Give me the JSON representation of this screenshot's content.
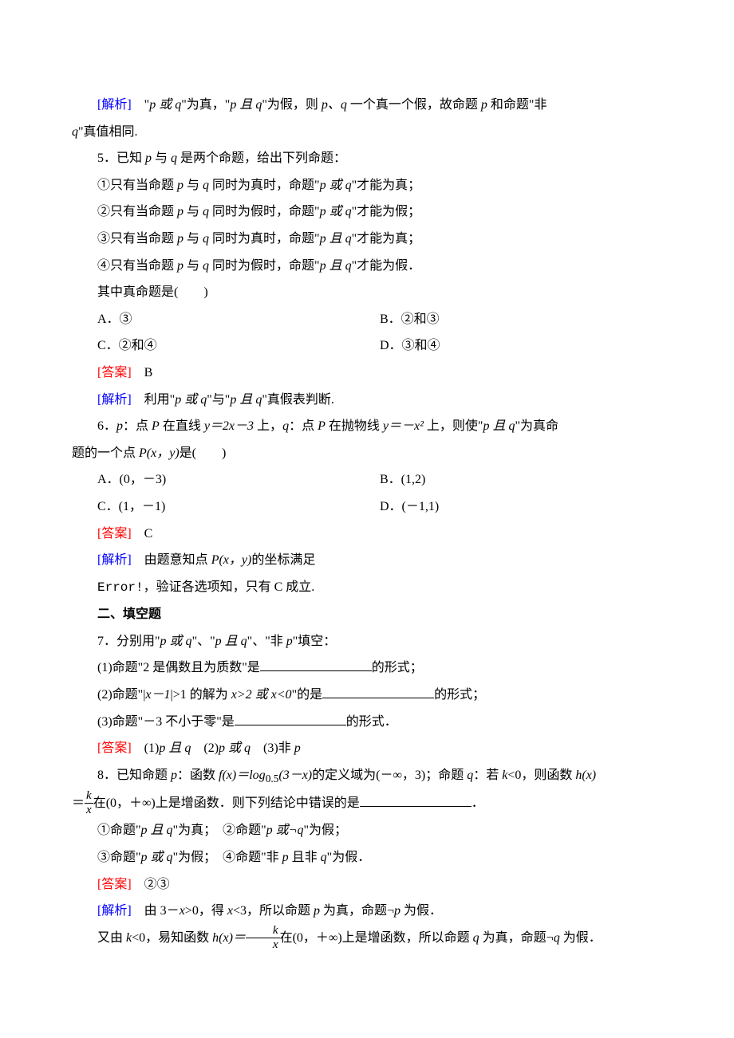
{
  "colors": {
    "text": "#000000",
    "analysis_label": "#0000ff",
    "answer_label": "#ff0000",
    "background": "#ffffff"
  },
  "typography": {
    "body_font": "SimSun",
    "math_font": "Times New Roman italic",
    "body_size_pt": 12,
    "line_height": 2.1
  },
  "analysis4": {
    "label": "[解析]",
    "text_before": "　\"",
    "p_or_q": "p 或 q",
    "mid1": "\"为真，\"",
    "p_and_q": "p 且 q",
    "mid2": "\"为假，则 ",
    "pq": "p、q",
    "mid3": " 一个真一个假，故命题 ",
    "p": "p",
    "mid4": " 和命题\"非",
    "cont_q": "q",
    "cont_tail": "\"真值相同."
  },
  "q5": {
    "stem_lead": "5．已知 ",
    "p": "p",
    "stem_mid1": " 与 ",
    "q": "q",
    "stem_tail": " 是两个命题，给出下列命题：",
    "s1_a": "①只有当命题 ",
    "s1_b": " 与 ",
    "s1_c": " 同时为真时，命题\"",
    "s1_conn": "p 或 q",
    "s1_d": "\"才能为真；",
    "s2_a": "②只有当命题 ",
    "s2_c": " 同时为假时，命题\"",
    "s2_conn": "p 或 q",
    "s2_d": "\"才能为假；",
    "s3_a": "③只有当命题 ",
    "s3_c": " 同时为真时，命题\"",
    "s3_conn": "p 且 q",
    "s3_d": "\"才能为真；",
    "s4_a": "④只有当命题 ",
    "s4_c": " 同时为假时，命题\"",
    "s4_conn": "p 且 q",
    "s4_d": "\"才能为假．",
    "ask": "其中真命题是(　　)",
    "optA": "A．③",
    "optB": "B．②和③",
    "optC": "C．②和④",
    "optD": "D．③和④",
    "ans_label": "[答案]",
    "ans": "　B",
    "ana_label": "[解析]",
    "ana_a": "　利用\"",
    "ana_or": "p 或 q",
    "ana_b": "\"与\"",
    "ana_and": "p 且 q",
    "ana_c": "\"真假表判断."
  },
  "q6": {
    "stem_a": "6．",
    "p": "p",
    "stem_b": "：点 ",
    "P": "P",
    "stem_c": " 在直线 ",
    "line_eq": "y＝2x－3",
    "stem_d": " 上，",
    "q": "q",
    "stem_e": "：点 ",
    "stem_f": " 在抛物线 ",
    "par_eq": "y＝－x²",
    "stem_g": " 上，则使\"",
    "pandq": "p 且 q",
    "stem_h": "\"为真命",
    "cont_a": "题的一个点 ",
    "Pxy": "P(x，y)",
    "cont_b": "是(　　)",
    "optA": "A．(0，－3)",
    "optB": "B．(1,2)",
    "optC": "C．(1，－1)",
    "optD": "D．(－1,1)",
    "ans_label": "[答案]",
    "ans": "　C",
    "ana_label": "[解析]",
    "ana_a": "　由题意知点 ",
    "ana_Pxy": "P(x，y)",
    "ana_b": "的坐标满足",
    "err": "Error!",
    "err_tail": "，验证各选项知，只有 C 成立."
  },
  "sec2": {
    "title": "二、填空题"
  },
  "q7": {
    "stem_a": "7．分别用\"",
    "or": "p 或 q",
    "stem_b": "\"、\"",
    "and": "p 且 q",
    "stem_c": "\"、\"非 ",
    "p": "p",
    "stem_d": "\"填空：",
    "s1": "(1)命题\"2 是偶数且为质数\"是",
    "s1_tail": "的形式；",
    "s2_a": "(2)命题\"|",
    "s2_expr": "x－1",
    "s2_b": "|>1 的解为 ",
    "s2_sol": "x>2 或 x<0",
    "s2_c": "\"的是",
    "s2_tail": "的形式；",
    "s3": "(3)命题\"－3 不小于零\"是",
    "s3_tail": "的形式．",
    "ans_label": "[答案]",
    "ans_a": "　(1)",
    "ans_1": "p 且 q",
    "ans_b": "　(2)",
    "ans_2": "p 或 q",
    "ans_c": "　(3)非 ",
    "ans_3": "p"
  },
  "q8": {
    "stem_a": "8．已知命题 ",
    "p": "p",
    "stem_b": "：函数 ",
    "fx": "f(x)＝log",
    "sub": "0.5",
    "arg": "(3－x)",
    "stem_c": "的定义域为(－∞，3)；命题 ",
    "q": "q",
    "stem_d": "：若 ",
    "k": "k",
    "stem_e": "<0，则函数 ",
    "hx": "h(x)",
    "cont_a": "＝",
    "frac_num": "k",
    "frac_den": "x",
    "cont_b": "在(0，＋∞)上是增函数．则下列结论中错误的是",
    "cont_c": "．",
    "s1_a": "①命题\"",
    "s1_conn": "p 且 q",
    "s1_b": "\"为真；　②命题\"",
    "s1_conn2": "p 或¬q",
    "s1_c": "\"为假；",
    "s2_a": "③命题\"",
    "s2_conn": "p 或 q",
    "s2_b": "\"为假；　④命题\"非 ",
    "s2_p": "p",
    "s2_c": " 且非 ",
    "s2_q": "q",
    "s2_d": "\"为假．",
    "ans_label": "[答案]",
    "ans": "　②③",
    "ana_label": "[解析]",
    "ana_a": "　由 3－",
    "ana_x": "x",
    "ana_b": ">0，得 ",
    "ana_c": "<3，所以命题 ",
    "ana_d": " 为真，命题¬",
    "ana_e": " 为假．",
    "ana2_a": "又由 ",
    "ana2_b": "<0，易知函数 ",
    "ana2_hx_a": "h(x)＝",
    "ana2_c": "在(0，＋∞)上是增函数，所以命题 ",
    "ana2_d": " 为真，命题¬",
    "ana2_e": " 为假．"
  }
}
